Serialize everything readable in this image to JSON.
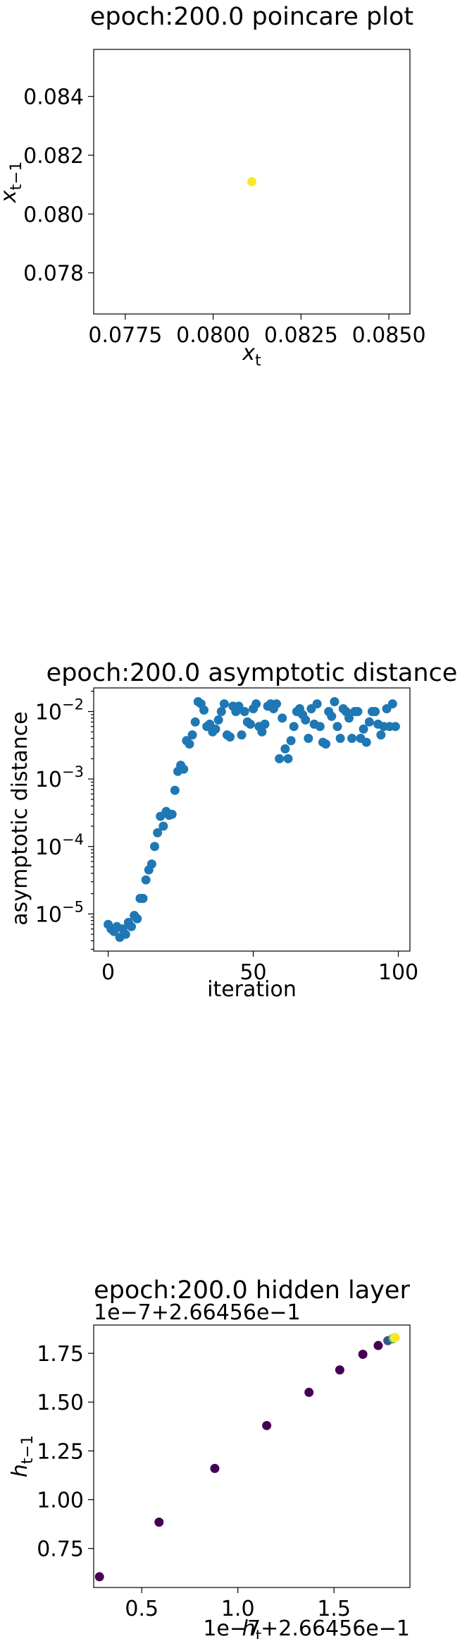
{
  "chart_data": [
    {
      "type": "scatter",
      "title": "epoch:200.0 poincare plot",
      "xlabel": "x_t",
      "ylabel": "x_{t-1}",
      "xlim": [
        0.0766,
        0.0856
      ],
      "ylim": [
        0.0766,
        0.0856
      ],
      "xticks": [
        0.0775,
        0.08,
        0.0825,
        0.085
      ],
      "xtick_labels": [
        "0.0775",
        "0.0800",
        "0.0825",
        "0.0850"
      ],
      "yticks": [
        0.078,
        0.08,
        0.082,
        0.084
      ],
      "ytick_labels": [
        "0.078",
        "0.080",
        "0.082",
        "0.084"
      ],
      "grid": false,
      "colors": {
        "point": "#fde725"
      },
      "points": [
        {
          "x": 0.0811,
          "y": 0.0811
        }
      ]
    },
    {
      "type": "scatter",
      "title": "epoch:200.0 asymptotic distance",
      "xlabel": "iteration",
      "ylabel": "asymptotic distance",
      "yscale": "log",
      "xlim": [
        -5,
        104
      ],
      "ylim_log10": [
        -5.55,
        -1.65
      ],
      "xticks": [
        0,
        50,
        100
      ],
      "xtick_labels": [
        "0",
        "50",
        "100"
      ],
      "yticks_log10": [
        -5,
        -4,
        -3,
        -2
      ],
      "ytick_labels": [
        {
          "base": "10",
          "exp": "−5"
        },
        {
          "base": "10",
          "exp": "−4"
        },
        {
          "base": "10",
          "exp": "−3"
        },
        {
          "base": "10",
          "exp": "−2"
        }
      ],
      "grid": false,
      "colors": {
        "point": "#1f77b4"
      },
      "x": [
        0,
        1,
        2,
        3,
        4,
        5,
        6,
        7,
        8,
        9,
        10,
        11,
        12,
        13,
        14,
        15,
        16,
        17,
        18,
        19,
        20,
        21,
        22,
        23,
        24,
        25,
        26,
        27,
        28,
        29,
        30,
        31,
        32,
        33,
        34,
        35,
        36,
        37,
        38,
        39,
        40,
        41,
        42,
        43,
        44,
        45,
        46,
        47,
        48,
        49,
        50,
        51,
        52,
        53,
        54,
        55,
        56,
        57,
        58,
        59,
        60,
        61,
        62,
        63,
        64,
        65,
        66,
        67,
        68,
        69,
        70,
        71,
        72,
        73,
        74,
        75,
        76,
        77,
        78,
        79,
        80,
        81,
        82,
        83,
        84,
        85,
        86,
        87,
        88,
        89,
        90,
        91,
        92,
        93,
        94,
        95,
        96,
        97,
        98,
        99
      ],
      "y": [
        7e-06,
        6e-06,
        5.5e-06,
        6.5e-06,
        4.5e-06,
        6e-06,
        5e-06,
        7.5e-06,
        6.5e-06,
        9.5e-06,
        8.5e-06,
        1.7e-05,
        1.7e-05,
        3.2e-05,
        4.5e-05,
        5.5e-05,
        0.0001,
        0.00016,
        0.00028,
        0.0002,
        0.00033,
        0.00029,
        0.0003,
        0.00068,
        0.0013,
        0.0016,
        0.0014,
        0.0037,
        0.0033,
        0.0045,
        0.007,
        0.014,
        0.013,
        0.0105,
        0.006,
        0.0065,
        0.005,
        0.0055,
        0.0075,
        0.01,
        0.013,
        0.0045,
        0.0042,
        0.012,
        0.01,
        0.012,
        0.0045,
        0.01,
        0.007,
        0.0065,
        0.011,
        0.013,
        0.006,
        0.005,
        0.0065,
        0.012,
        0.013,
        0.011,
        0.013,
        0.002,
        0.008,
        0.0028,
        0.002,
        0.0037,
        0.006,
        0.01,
        0.011,
        0.009,
        0.0075,
        0.004,
        0.011,
        0.0065,
        0.013,
        0.006,
        0.0035,
        0.0033,
        0.01,
        0.0085,
        0.014,
        0.006,
        0.004,
        0.011,
        0.01,
        0.008,
        0.004,
        0.01,
        0.01,
        0.004,
        0.0055,
        0.0035,
        0.007,
        0.01,
        0.01,
        0.0065,
        0.0045,
        0.006,
        0.011,
        0.006,
        0.013,
        0.006
      ]
    },
    {
      "type": "scatter",
      "title": "epoch:200.0 hidden layer",
      "xlabel": "h_t",
      "ylabel": "h_{t-1}",
      "x_offset_label": "1e−7+2.66456e−1",
      "y_offset_label": "1e−7+2.66456e−1",
      "xlim": [
        0.25,
        1.895
      ],
      "ylim": [
        0.55,
        1.895
      ],
      "xticks": [
        0.5,
        1.0,
        1.5
      ],
      "xtick_labels": [
        "0.5",
        "1.0",
        "1.5"
      ],
      "yticks": [
        0.75,
        1.0,
        1.25,
        1.5,
        1.75
      ],
      "ytick_labels": [
        "0.75",
        "1.00",
        "1.25",
        "1.50",
        "1.75"
      ],
      "grid": false,
      "colors": {
        "early": "#440154",
        "late": "#fde725"
      },
      "points": [
        {
          "x": 0.28,
          "y": 0.605,
          "c": "#440154"
        },
        {
          "x": 0.59,
          "y": 0.885,
          "c": "#440154"
        },
        {
          "x": 0.88,
          "y": 1.16,
          "c": "#440154"
        },
        {
          "x": 1.15,
          "y": 1.38,
          "c": "#440154"
        },
        {
          "x": 1.37,
          "y": 1.55,
          "c": "#440154"
        },
        {
          "x": 1.53,
          "y": 1.665,
          "c": "#440154"
        },
        {
          "x": 1.65,
          "y": 1.745,
          "c": "#440154"
        },
        {
          "x": 1.73,
          "y": 1.79,
          "c": "#440154"
        },
        {
          "x": 1.78,
          "y": 1.815,
          "c": "#3b528b"
        },
        {
          "x": 1.805,
          "y": 1.825,
          "c": "#21918c"
        },
        {
          "x": 1.81,
          "y": 1.828,
          "c": "#5ec962"
        },
        {
          "x": 1.815,
          "y": 1.83,
          "c": "#fde725"
        },
        {
          "x": 1.818,
          "y": 1.831,
          "c": "#fde725"
        }
      ]
    }
  ]
}
